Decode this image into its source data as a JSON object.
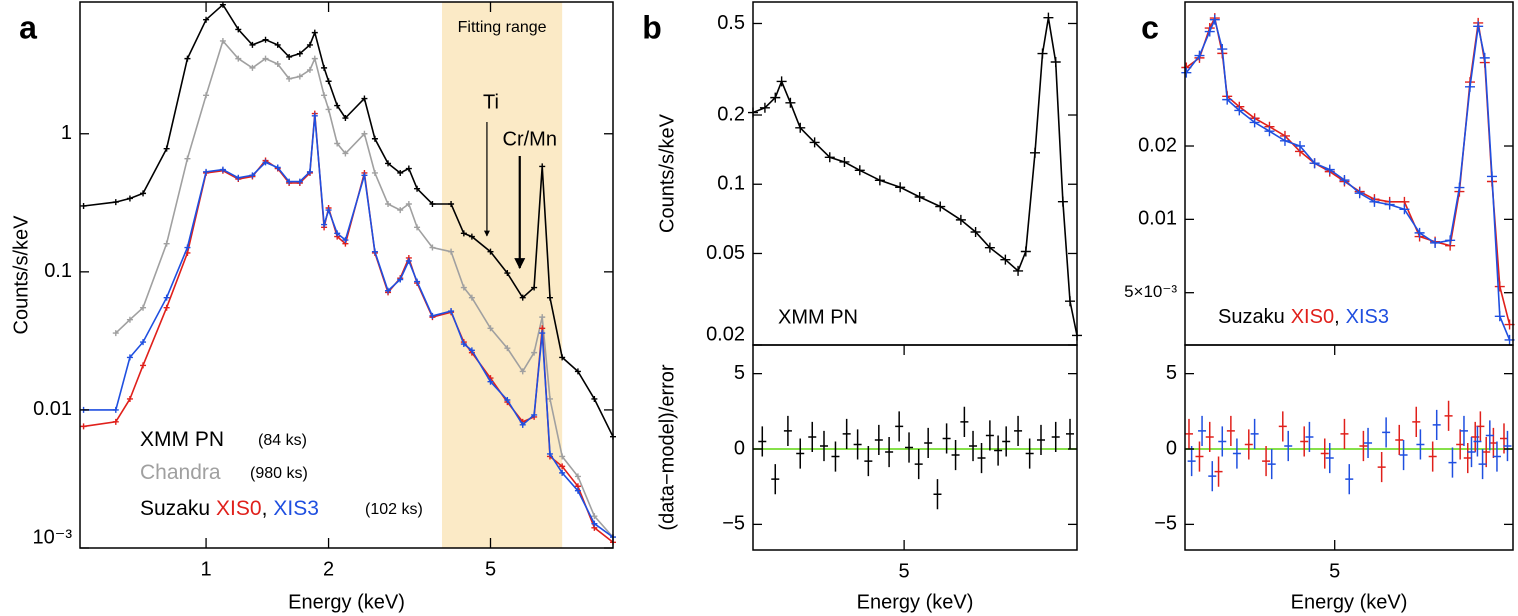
{
  "chart_data": [
    {
      "type": "line",
      "panel": "a",
      "xlabel": "Energy (keV)",
      "ylabel": "Counts/s/keV",
      "xlog": true,
      "ylog": true,
      "xlim": [
        0.49,
        10
      ],
      "ylim": [
        0.001,
        9
      ],
      "xticks": [
        1,
        2,
        5
      ],
      "yticks": [
        {
          "value": 0.001,
          "label": "10⁻³"
        },
        0.01,
        0.1,
        1
      ],
      "fit_range": [
        3.8,
        7.5
      ],
      "fit_label": "Fitting range",
      "fit_color": "#fbeac6",
      "annotations": [
        {
          "text": "Ti",
          "x": 4.9
        },
        {
          "text": "Cr/Mn",
          "x": 5.9
        }
      ],
      "legend_prefix": "Suzaku",
      "legend_separator": ",",
      "exposures": [
        "(84 ks)",
        "(980 ks)",
        "(102 ks)"
      ],
      "x": [
        0.5,
        0.6,
        0.65,
        0.7,
        0.8,
        0.9,
        1.0,
        1.1,
        1.2,
        1.3,
        1.4,
        1.5,
        1.6,
        1.7,
        1.8,
        1.85,
        1.95,
        2.0,
        2.1,
        2.2,
        2.45,
        2.6,
        2.8,
        3.0,
        3.15,
        3.3,
        3.6,
        4.0,
        4.3,
        4.5,
        5.0,
        5.5,
        6.0,
        6.4,
        6.7,
        7.0,
        7.5,
        8.2,
        9.0,
        10.0
      ],
      "series": [
        {
          "name": "XMM PN",
          "color": "#000000",
          "values": [
            0.3,
            0.32,
            0.34,
            0.37,
            0.78,
            3.5,
            6.7,
            8.6,
            5.7,
            4.4,
            4.8,
            4.4,
            3.6,
            3.8,
            4.4,
            5.4,
            3.0,
            2.4,
            1.6,
            1.3,
            1.8,
            0.92,
            0.61,
            0.52,
            0.56,
            0.4,
            0.31,
            0.31,
            0.19,
            0.18,
            0.14,
            0.098,
            0.065,
            0.077,
            0.58,
            0.065,
            0.024,
            0.019,
            0.012,
            0.0064
          ]
        },
        {
          "name": "Chandra",
          "color": "#a0a0a0",
          "values": [
            null,
            0.036,
            0.045,
            0.055,
            0.16,
            0.66,
            1.9,
            4.7,
            3.5,
            3.0,
            3.5,
            3.2,
            2.5,
            2.6,
            2.9,
            3.5,
            1.9,
            1.5,
            0.85,
            0.72,
            1.0,
            0.52,
            0.31,
            0.28,
            0.31,
            0.21,
            0.15,
            0.14,
            0.077,
            0.065,
            0.039,
            0.028,
            0.019,
            0.026,
            0.047,
            0.012,
            0.0046,
            0.0033,
            0.0017,
            0.0012
          ]
        },
        {
          "name": "XIS0",
          "color": "#e0201b",
          "values": [
            0.0076,
            0.0082,
            0.012,
            0.021,
            0.055,
            0.137,
            0.52,
            0.54,
            0.47,
            0.49,
            0.64,
            0.56,
            0.44,
            0.44,
            0.52,
            1.4,
            0.21,
            0.29,
            0.18,
            0.16,
            0.52,
            0.137,
            0.071,
            0.09,
            0.126,
            0.083,
            0.047,
            0.051,
            0.031,
            0.026,
            0.017,
            0.0114,
            0.0082,
            0.0089,
            0.039,
            0.0046,
            0.0039,
            0.0028,
            0.0014,
            0.0011
          ]
        },
        {
          "name": "XIS3",
          "color": "#1f4fe0",
          "values": [
            0.01,
            0.01,
            0.024,
            0.031,
            0.065,
            0.15,
            0.53,
            0.55,
            0.48,
            0.5,
            0.62,
            0.57,
            0.45,
            0.45,
            0.53,
            1.35,
            0.22,
            0.28,
            0.19,
            0.17,
            0.5,
            0.14,
            0.073,
            0.088,
            0.12,
            0.085,
            0.048,
            0.052,
            0.03,
            0.027,
            0.016,
            0.0118,
            0.0078,
            0.0092,
            0.036,
            0.0048,
            0.0035,
            0.0026,
            0.0015,
            0.0012
          ]
        }
      ]
    },
    {
      "type": "line",
      "panel": "b",
      "ylabel": "Counts/s/keV",
      "annotation": "XMM PN",
      "xlog": true,
      "ylog": true,
      "xlim": [
        3.68,
        7.1
      ],
      "ylim": [
        0.02,
        0.62
      ],
      "yticks": [
        0.02,
        0.05,
        0.1,
        0.2,
        0.5
      ],
      "x": [
        3.68,
        3.77,
        3.85,
        3.9,
        3.97,
        4.05,
        4.17,
        4.3,
        4.43,
        4.57,
        4.76,
        4.96,
        5.16,
        5.38,
        5.61,
        5.78,
        5.95,
        6.14,
        6.3,
        6.4,
        6.52,
        6.62,
        6.7,
        6.8,
        6.9,
        7.0,
        7.1
      ],
      "series": [
        {
          "color": "#000000",
          "values": [
            0.205,
            0.215,
            0.238,
            0.28,
            0.226,
            0.176,
            0.152,
            0.131,
            0.125,
            0.115,
            0.104,
            0.097,
            0.088,
            0.08,
            0.07,
            0.062,
            0.053,
            0.047,
            0.042,
            0.051,
            0.137,
            0.37,
            0.53,
            0.34,
            0.084,
            0.031,
            0.022
          ]
        }
      ]
    },
    {
      "type": "scatter",
      "xlabel": "Energy (keV)",
      "ylabel": "(data−model)/error",
      "xlog": true,
      "ylog": false,
      "xlim": [
        3.68,
        7.1
      ],
      "ylim": [
        -6.7,
        6.9
      ],
      "xticks": [
        5
      ],
      "yticks": [
        {
          "value": -5,
          "label": "−5"
        },
        0,
        5
      ],
      "zero_line_color": "#86e04a",
      "series": [
        {
          "color": "#000000",
          "x": [
            3.75,
            3.85,
            3.95,
            4.05,
            4.15,
            4.25,
            4.35,
            4.45,
            4.55,
            4.65,
            4.75,
            4.85,
            4.95,
            5.05,
            5.15,
            5.25,
            5.35,
            5.45,
            5.55,
            5.65,
            5.75,
            5.85,
            5.95,
            6.05,
            6.15,
            6.3,
            6.45,
            6.6,
            6.8,
            7.0
          ],
          "values": [
            0.5,
            -2,
            1.2,
            -0.3,
            0.8,
            0.2,
            -0.5,
            1,
            0.3,
            -0.8,
            0.6,
            -0.2,
            1.5,
            0.1,
            -1,
            0.4,
            -3,
            0.7,
            -0.4,
            1.8,
            0.2,
            -0.6,
            0.9,
            -0.1,
            0.5,
            1.2,
            -0.3,
            0.6,
            0.8,
            1
          ],
          "errors": [
            1,
            1,
            1,
            1,
            1,
            1,
            1,
            1,
            1,
            1,
            1,
            1,
            1,
            1,
            1,
            1,
            1,
            1,
            1,
            1,
            1,
            1,
            1,
            1,
            1,
            1,
            1,
            1,
            1,
            1
          ]
        }
      ]
    },
    {
      "type": "line",
      "panel": "c",
      "legend_prefix": "Suzaku",
      "legend_separator": ",",
      "xlog": true,
      "ylog": true,
      "xlim": [
        3.69,
        7.18
      ],
      "ylim": [
        0.00305,
        0.078
      ],
      "yticks": [
        {
          "value": 0.005,
          "label": "5×10⁻³"
        },
        0.01,
        0.02
      ],
      "x": [
        3.7,
        3.8,
        3.88,
        3.92,
        3.98,
        4.02,
        4.12,
        4.25,
        4.38,
        4.52,
        4.66,
        4.8,
        4.95,
        5.1,
        5.26,
        5.42,
        5.59,
        5.76,
        5.94,
        6.13,
        6.32,
        6.44,
        6.58,
        6.69,
        6.78,
        6.88,
        6.99,
        7.13
      ],
      "series": [
        {
          "name": "XIS0",
          "color": "#e0201b",
          "values": [
            0.042,
            0.046,
            0.061,
            0.067,
            0.048,
            0.032,
            0.029,
            0.026,
            0.024,
            0.022,
            0.019,
            0.017,
            0.0157,
            0.0143,
            0.013,
            0.0121,
            0.0118,
            0.0118,
            0.0085,
            0.0081,
            0.0078,
            0.013,
            0.0366,
            0.064,
            0.044,
            0.0143,
            0.0053,
            0.0037
          ]
        },
        {
          "name": "XIS3",
          "color": "#1f4fe0",
          "values": [
            0.04,
            0.047,
            0.059,
            0.066,
            0.05,
            0.031,
            0.028,
            0.025,
            0.023,
            0.021,
            0.02,
            0.017,
            0.016,
            0.0145,
            0.0128,
            0.0118,
            0.0115,
            0.011,
            0.0088,
            0.008,
            0.0082,
            0.0135,
            0.035,
            0.062,
            0.046,
            0.015,
            0.004,
            0.0032
          ]
        }
      ]
    },
    {
      "type": "scatter",
      "xlabel": "Energy (keV)",
      "xlog": true,
      "ylog": false,
      "xlim": [
        3.69,
        7.18
      ],
      "ylim": [
        -6.7,
        6.9
      ],
      "xticks": [
        5
      ],
      "yticks": [
        {
          "value": -5,
          "label": "−5"
        },
        0,
        5
      ],
      "zero_line_color": "#86e04a",
      "series": [
        {
          "color": "#e0201b",
          "x": [
            3.72,
            3.8,
            3.88,
            3.95,
            4.05,
            4.2,
            4.35,
            4.5,
            4.7,
            4.9,
            5.1,
            5.3,
            5.5,
            5.7,
            5.9,
            6.1,
            6.3,
            6.45,
            6.55,
            6.65,
            6.72,
            6.8,
            6.9,
            7.05
          ],
          "values": [
            1,
            -0.5,
            0.8,
            -1.5,
            1.2,
            0.3,
            -0.8,
            1.5,
            0.5,
            -0.3,
            1,
            0.2,
            -1.2,
            0.6,
            1.8,
            -0.5,
            2.2,
            0.3,
            -0.6,
            0.8,
            1.5,
            -0.2,
            0.4,
            0.7
          ],
          "errors": [
            1,
            1,
            1,
            1,
            1,
            1,
            1,
            1,
            1,
            1,
            1,
            1,
            1,
            1,
            1,
            1,
            1,
            1,
            1,
            1,
            1,
            1,
            1,
            1
          ]
        },
        {
          "color": "#1f4fe0",
          "x": [
            3.74,
            3.82,
            3.9,
            3.98,
            4.1,
            4.25,
            4.4,
            4.55,
            4.75,
            4.95,
            5.15,
            5.35,
            5.55,
            5.75,
            5.95,
            6.15,
            6.35,
            6.5,
            6.6,
            6.68,
            6.75,
            6.85,
            6.95,
            7.1
          ],
          "values": [
            -0.8,
            1.2,
            -1.8,
            0.5,
            -0.3,
            1,
            -1,
            0.2,
            0.8,
            -0.6,
            -2,
            0.4,
            1.1,
            -0.4,
            0.3,
            1.6,
            -0.9,
            1.2,
            -0.2,
            0.5,
            -1,
            0.9,
            -0.5,
            0.2
          ],
          "errors": [
            1,
            1,
            1,
            1,
            1,
            1,
            1,
            1,
            1,
            1,
            1,
            1,
            1,
            1,
            1,
            1,
            1,
            1,
            1,
            1,
            1,
            1,
            1,
            1
          ]
        }
      ]
    }
  ]
}
